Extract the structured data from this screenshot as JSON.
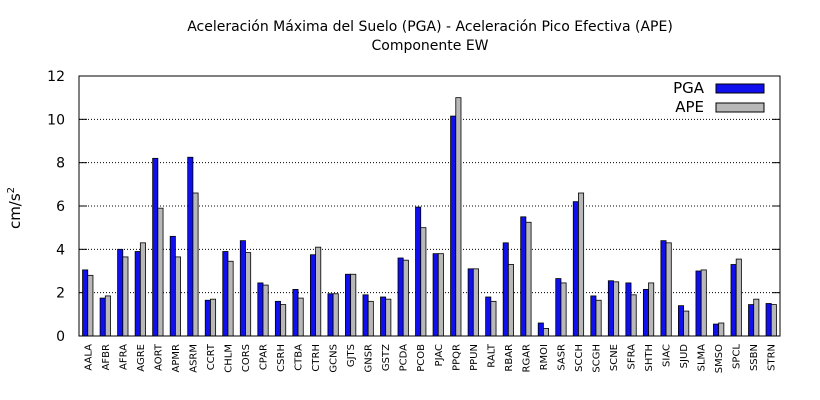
{
  "chart_data": {
    "type": "bar",
    "title": "Aceleración Máxima del Suelo (PGA) -  Aceleración Pico Efectiva (APE)",
    "subtitle": "Componente EW",
    "ylabel": "cm/s",
    "ylabel_sup": "2",
    "ylim": [
      0,
      12
    ],
    "yticks": [
      0,
      2,
      4,
      6,
      8,
      10,
      12
    ],
    "grid": true,
    "legend_position": "top-right",
    "categories": [
      "AALA",
      "AFBR",
      "AFRA",
      "AGRE",
      "AORT",
      "APMR",
      "ASRM",
      "CCRT",
      "CHLM",
      "CORS",
      "CPAR",
      "CSRH",
      "CTBA",
      "CTRH",
      "GCNS",
      "GJTS",
      "GNSR",
      "GSTZ",
      "PCDA",
      "PCOB",
      "PJAC",
      "PPQR",
      "PPUN",
      "RALT",
      "RBAR",
      "RGAR",
      "RMOI",
      "SASR",
      "SCCH",
      "SCGH",
      "SCNE",
      "SFRA",
      "SHTH",
      "SIAC",
      "SJUD",
      "SLMA",
      "SMSO",
      "SPCL",
      "SSBN",
      "STRN"
    ],
    "series": [
      {
        "name": "PGA",
        "color": "#1010ee",
        "values": [
          3.05,
          1.75,
          4.0,
          3.9,
          8.2,
          4.6,
          8.25,
          1.65,
          3.9,
          4.4,
          2.45,
          1.6,
          2.15,
          3.75,
          1.95,
          2.85,
          1.9,
          1.8,
          3.6,
          5.95,
          3.8,
          10.15,
          3.1,
          1.8,
          4.3,
          5.5,
          0.6,
          2.65,
          6.2,
          1.85,
          2.55,
          2.45,
          2.15,
          4.4,
          1.4,
          3.0,
          0.55,
          3.3,
          1.45,
          1.5
        ]
      },
      {
        "name": "APE",
        "color": "#b8b8b8",
        "values": [
          2.8,
          1.85,
          3.65,
          4.3,
          5.9,
          3.65,
          6.6,
          1.7,
          3.45,
          3.85,
          2.35,
          1.45,
          1.75,
          4.1,
          1.95,
          2.85,
          1.6,
          1.7,
          3.5,
          5.0,
          3.8,
          11.0,
          3.1,
          1.6,
          3.3,
          5.25,
          0.35,
          2.45,
          6.6,
          1.65,
          2.5,
          1.9,
          2.45,
          4.3,
          1.15,
          3.05,
          0.6,
          3.55,
          1.7,
          1.45
        ]
      }
    ]
  }
}
